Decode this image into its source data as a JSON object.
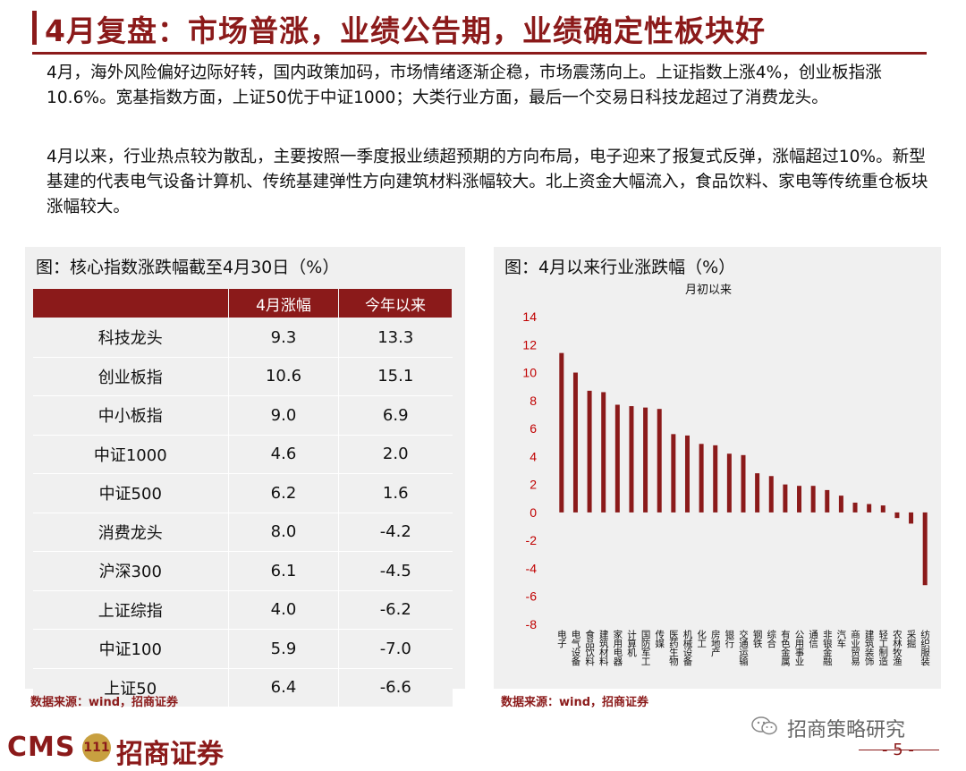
{
  "title": "4月复盘：市场普涨，业绩公告期，业绩确定性板块好",
  "paragraphs": [
    "4月，海外风险偏好边际好转，国内政策加码，市场情绪逐渐企稳，市场震荡向上。上证指数上涨4%，创业板指涨10.6%。宽基指数方面，上证50优于中证1000；大类行业方面，最后一个交易日科技龙超过了消费龙头。",
    "4月以来，行业热点较为散乱，主要按照一季度报业绩超预期的方向布局，电子迎来了报复式反弹，涨幅超过10%。新型基建的代表电气设备计算机、传统基建弹性方向建筑材料涨幅较大。北上资金大幅流入，食品饮料、家电等传统重仓板块涨幅较大。"
  ],
  "left_panel": {
    "title": "图：核心指数涨跌幅截至4月30日（%）",
    "headers": [
      "",
      "4月涨幅",
      "今年以来"
    ],
    "rows": [
      {
        "name": "科技龙头",
        "april": "9.3",
        "ytd": "13.3"
      },
      {
        "name": "创业板指",
        "april": "10.6",
        "ytd": "15.1"
      },
      {
        "name": "中小板指",
        "april": "9.0",
        "ytd": "6.9"
      },
      {
        "name": "中证1000",
        "april": "4.6",
        "ytd": "2.0"
      },
      {
        "name": "中证500",
        "april": "6.2",
        "ytd": "1.6"
      },
      {
        "name": "消费龙头",
        "april": "8.0",
        "ytd": "-4.2"
      },
      {
        "name": "沪深300",
        "april": "6.1",
        "ytd": "-4.5"
      },
      {
        "name": "上证综指",
        "april": "4.0",
        "ytd": "-6.2"
      },
      {
        "name": "中证100",
        "april": "5.9",
        "ytd": "-7.0"
      },
      {
        "name": "上证50",
        "april": "6.4",
        "ytd": "-6.6"
      }
    ],
    "source": "数据来源：wind，招商证券"
  },
  "right_panel": {
    "title": "图：4月以来行业涨跌幅（%）",
    "source": "数据来源：wind，招商证券"
  },
  "chart_data": {
    "type": "bar",
    "title": "月初以来",
    "xlabel": "",
    "ylabel": "",
    "ylim": [
      -8,
      14
    ],
    "yticks": [
      -8,
      -6,
      -4,
      -2,
      0,
      2,
      4,
      6,
      8,
      10,
      12,
      14
    ],
    "categories": [
      "电子",
      "电气设备",
      "食品饮料",
      "建筑材料",
      "家用电器",
      "计算机",
      "国防军工",
      "传媒",
      "医药生物",
      "机械设备",
      "化工",
      "房地产",
      "银行",
      "交通运输",
      "钢铁",
      "综合",
      "有色金属",
      "公用事业",
      "通信",
      "非银金融",
      "汽车",
      "商业贸易",
      "建筑装饰",
      "轻工制造",
      "农林牧渔",
      "采掘",
      "纺织服装"
    ],
    "values": [
      11.4,
      10.0,
      8.7,
      8.6,
      7.7,
      7.6,
      7.5,
      7.4,
      5.6,
      5.5,
      4.9,
      4.8,
      4.2,
      4.1,
      2.8,
      2.6,
      2.0,
      1.9,
      1.9,
      1.6,
      1.2,
      0.7,
      0.6,
      0.5,
      -0.4,
      -0.8,
      -5.2
    ],
    "bar_color": "#8b1a1a",
    "tick_color": "#c00000",
    "grid": false
  },
  "footer": {
    "logo_cms": "CMS",
    "logo_coin": "111",
    "logo_cn": "招商证券",
    "wechat": "招商策略研究",
    "page": "- 5 -"
  }
}
